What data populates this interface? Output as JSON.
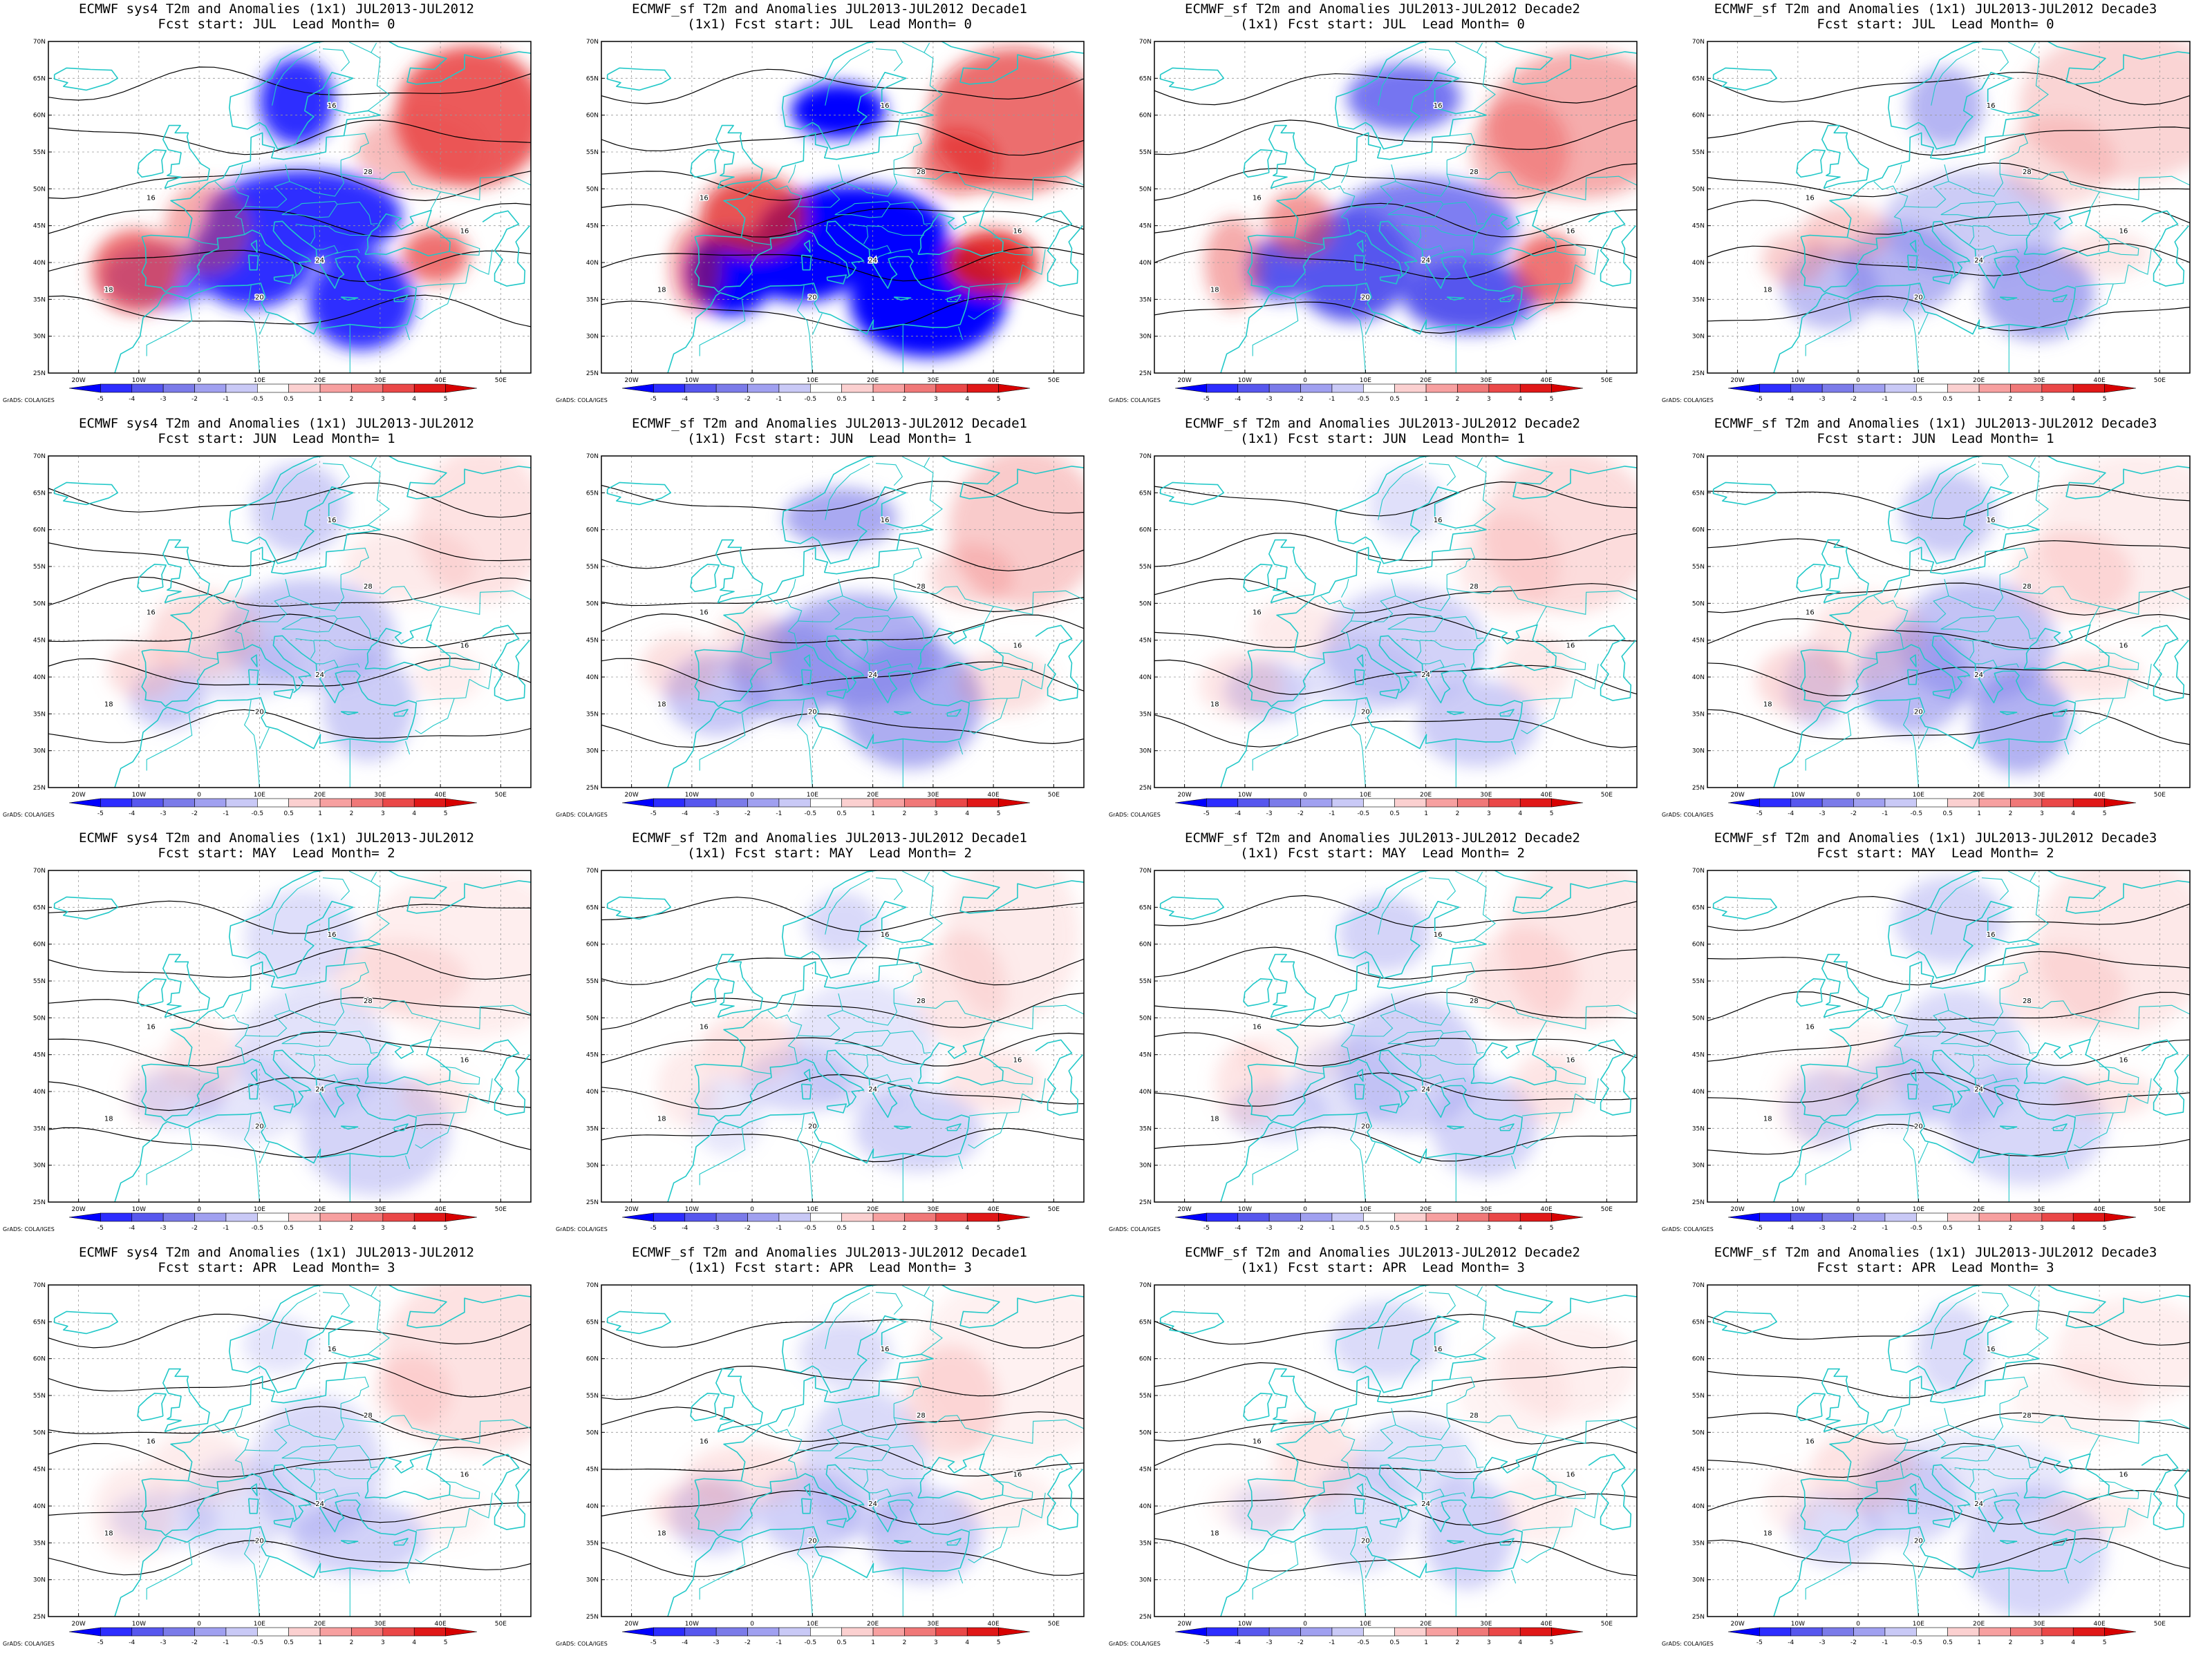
{
  "panels": [
    {
      "title1": "ECMWF sys4 T2m and Anomalies (1x1) JUL2013-JUL2012",
      "title2": "Fcst start: JUL  Lead Month= 0",
      "intensity": 3,
      "seed": 1
    },
    {
      "title1": "ECMWF_sf T2m and Anomalies JUL2013-JUL2012 Decade1",
      "title2": "(1x1) Fcst start: JUL  Lead Month= 0",
      "intensity": 4,
      "seed": 2
    },
    {
      "title1": "ECMWF_sf T2m and Anomalies JUL2013-JUL2012 Decade2",
      "title2": "(1x1) Fcst start: JUL  Lead Month= 0",
      "intensity": 2.5,
      "seed": 3
    },
    {
      "title1": "ECMWF_sf T2m and Anomalies (1x1) JUL2013-JUL2012 Decade3",
      "title2": "Fcst start: JUL  Lead Month= 0",
      "intensity": 1.5,
      "seed": 4
    },
    {
      "title1": "ECMWF sys4 T2m and Anomalies (1x1) JUL2013-JUL2012",
      "title2": "Fcst start: JUN  Lead Month= 1",
      "intensity": 1.2,
      "seed": 5
    },
    {
      "title1": "ECMWF_sf T2m and Anomalies JUL2013-JUL2012 Decade1",
      "title2": "(1x1) Fcst start: JUN  Lead Month= 1",
      "intensity": 1.4,
      "seed": 6
    },
    {
      "title1": "ECMWF_sf T2m and Anomalies JUL2013-JUL2012 Decade2",
      "title2": "(1x1) Fcst start: JUN  Lead Month= 1",
      "intensity": 1.2,
      "seed": 7
    },
    {
      "title1": "ECMWF_sf T2m and Anomalies (1x1) JUL2013-JUL2012 Decade3",
      "title2": "Fcst start: JUN  Lead Month= 1",
      "intensity": 1.3,
      "seed": 8
    },
    {
      "title1": "ECMWF sys4 T2m and Anomalies (1x1) JUL2013-JUL2012",
      "title2": "Fcst start: MAY  Lead Month= 2",
      "intensity": 1,
      "seed": 9
    },
    {
      "title1": "ECMWF_sf T2m and Anomalies JUL2013-JUL2012 Decade1",
      "title2": "(1x1) Fcst start: MAY  Lead Month= 2",
      "intensity": 1,
      "seed": 10
    },
    {
      "title1": "ECMWF_sf T2m and Anomalies JUL2013-JUL2012 Decade2",
      "title2": "(1x1) Fcst start: MAY  Lead Month= 2",
      "intensity": 1,
      "seed": 11
    },
    {
      "title1": "ECMWF_sf T2m and Anomalies (1x1) JUL2013-JUL2012 Decade3",
      "title2": "Fcst start: MAY  Lead Month= 2",
      "intensity": 0.9,
      "seed": 12
    },
    {
      "title1": "ECMWF sys4 T2m and Anomalies (1x1) JUL2013-JUL2012",
      "title2": "Fcst start: APR  Lead Month= 3",
      "intensity": 1,
      "seed": 13
    },
    {
      "title1": "ECMWF_sf T2m and Anomalies JUL2013-JUL2012 Decade1",
      "title2": "(1x1) Fcst start: APR  Lead Month= 3",
      "intensity": 1.1,
      "seed": 14
    },
    {
      "title1": "ECMWF_sf T2m and Anomalies JUL2013-JUL2012 Decade2",
      "title2": "(1x1) Fcst start: APR  Lead Month= 3",
      "intensity": 1,
      "seed": 15
    },
    {
      "title1": "ECMWF_sf T2m and Anomalies (1x1) JUL2013-JUL2012 Decade3",
      "title2": "Fcst start: APR  Lead Month= 3",
      "intensity": 0.9,
      "seed": 16
    }
  ],
  "lat_labels": [
    "70N",
    "65N",
    "60N",
    "55N",
    "50N",
    "45N",
    "40N",
    "35N",
    "30N",
    "25N"
  ],
  "lon_labels": [
    "20W",
    "10W",
    "0",
    "10E",
    "20E",
    "30E",
    "40E",
    "50E"
  ],
  "colorbar_labels": [
    "-5",
    "-4",
    "-3",
    "-2",
    "-1",
    "-0.5",
    "0.5",
    "1",
    "2",
    "3",
    "4",
    "5"
  ],
  "colorbar_colors": [
    "#0000ff",
    "#2d2dff",
    "#5757ee",
    "#7b7be9",
    "#a0a0f0",
    "#c9c9f6",
    "#ffffff",
    "#fbd0d0",
    "#f7a0a0",
    "#f07878",
    "#ea4848",
    "#e01818",
    "#d70000"
  ],
  "contour_labels": [
    "12",
    "16",
    "18",
    "20",
    "24",
    "28"
  ],
  "credit": "GrADS: COLA/IGES",
  "colors": {
    "coast": "#22c8c8",
    "contour": "#000000",
    "grid": "#999999"
  }
}
